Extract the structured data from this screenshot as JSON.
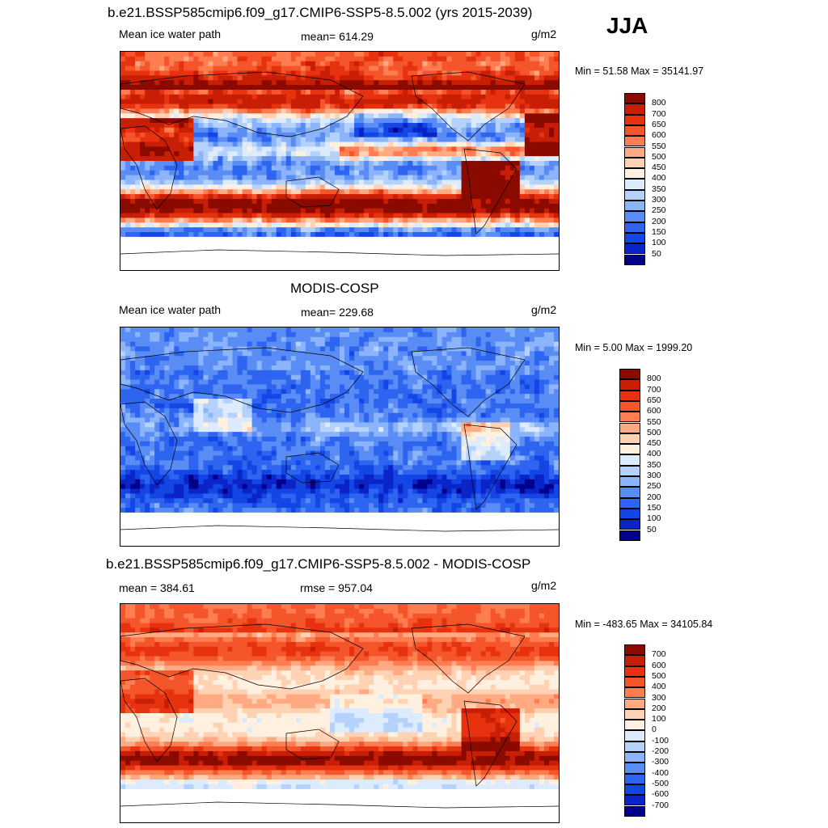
{
  "season": "JJA",
  "colors": {
    "ten": [
      "#00008b",
      "#0a24c8",
      "#1446e6",
      "#2d64f0",
      "#5a8cf5",
      "#8cb4fa",
      "#b4d2fc",
      "#dcebfe",
      "#fff0e0",
      "#ffd2b4",
      "#ffaa82",
      "#ff7d50",
      "#f5552a",
      "#e6320f",
      "#c81e05",
      "#8b0a00"
    ],
    "diff": [
      "#00008b",
      "#0a24c8",
      "#1446e6",
      "#2d64f0",
      "#5a8cf5",
      "#8cb4fa",
      "#b4d2fc",
      "#dcebfe",
      "#fff0e0",
      "#ffd2b4",
      "#ffaa82",
      "#ff7d50",
      "#f5552a",
      "#e6320f",
      "#c81e05",
      "#8b0a00"
    ]
  },
  "panels": [
    {
      "id": "model",
      "title": "b.e21.BSSP585cmip6.f09_g17.CMIP6-SSP5-8.5.002 (yrs 2015-2039)",
      "left_text": "Mean ice water path",
      "center_text": "mean= 614.29",
      "units": "g/m2",
      "minmax": "Min =  51.58 Max = 35141.97",
      "colorbar_labels": [
        "800",
        "700",
        "650",
        "600",
        "550",
        "500",
        "450",
        "400",
        "350",
        "300",
        "250",
        "200",
        "150",
        "100",
        "50"
      ],
      "palette": "ten",
      "style": "model"
    },
    {
      "id": "obs",
      "title": "MODIS-COSP",
      "left_text": "Mean ice water path",
      "center_text": "mean= 229.68",
      "units": "g/m2",
      "minmax": "Min =   5.00 Max = 1999.20",
      "colorbar_labels": [
        "800",
        "700",
        "650",
        "600",
        "550",
        "500",
        "450",
        "400",
        "350",
        "300",
        "250",
        "200",
        "150",
        "100",
        "50"
      ],
      "palette": "ten",
      "style": "obs"
    },
    {
      "id": "diff",
      "title": "b.e21.BSSP585cmip6.f09_g17.CMIP6-SSP5-8.5.002 - MODIS-COSP",
      "left_text": "mean = 384.61",
      "center_text": "rmse = 957.04",
      "units": "g/m2",
      "minmax": "Min = -483.65 Max = 34105.84",
      "colorbar_labels": [
        "700",
        "600",
        "500",
        "400",
        "300",
        "200",
        "100",
        "0",
        "-100",
        "-200",
        "-300",
        "-400",
        "-500",
        "-600",
        "-700"
      ],
      "palette": "diff",
      "style": "diff"
    }
  ],
  "chart_data": [
    {
      "type": "heatmap",
      "title": "b.e21.BSSP585cmip6.f09_g17.CMIP6-SSP5-8.5.002 (yrs 2015-2039)",
      "variable": "Mean ice water path",
      "units": "g/m2",
      "mean": 614.29,
      "min": 51.58,
      "max": 35141.97,
      "levels": [
        50,
        100,
        150,
        200,
        250,
        300,
        350,
        400,
        450,
        500,
        550,
        600,
        650,
        700,
        800
      ]
    },
    {
      "type": "heatmap",
      "title": "MODIS-COSP",
      "variable": "Mean ice water path",
      "units": "g/m2",
      "mean": 229.68,
      "min": 5.0,
      "max": 1999.2,
      "levels": [
        50,
        100,
        150,
        200,
        250,
        300,
        350,
        400,
        450,
        500,
        550,
        600,
        650,
        700,
        800
      ]
    },
    {
      "type": "heatmap",
      "title": "b.e21.BSSP585cmip6.f09_g17.CMIP6-SSP5-8.5.002 - MODIS-COSP",
      "units": "g/m2",
      "mean": 384.61,
      "rmse": 957.04,
      "min": -483.65,
      "max": 34105.84,
      "levels": [
        -700,
        -600,
        -500,
        -400,
        -300,
        -200,
        -100,
        0,
        100,
        200,
        300,
        400,
        500,
        600,
        700
      ]
    }
  ]
}
